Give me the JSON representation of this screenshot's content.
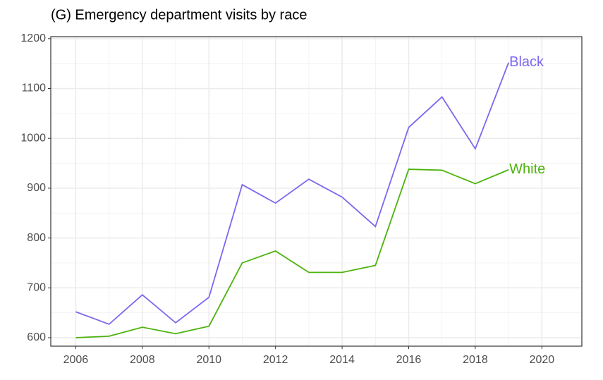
{
  "chart_data": {
    "type": "line",
    "title": "(G) Emergency department visits by race",
    "x": [
      2006,
      2007,
      2008,
      2009,
      2010,
      2011,
      2012,
      2013,
      2014,
      2015,
      2016,
      2017,
      2018,
      2019
    ],
    "series": [
      {
        "name": "Black",
        "color": "#7b68ee",
        "values": [
          652,
          627,
          686,
          630,
          681,
          907,
          870,
          918,
          882,
          823,
          1022,
          1083,
          979,
          1152
        ]
      },
      {
        "name": "White",
        "color": "#4cb30c",
        "values": [
          600,
          603,
          621,
          608,
          623,
          750,
          774,
          731,
          731,
          745,
          938,
          936,
          909,
          937
        ]
      }
    ],
    "xlim": [
      2005.25,
      2021.2
    ],
    "xticks": [
      2006,
      2008,
      2010,
      2012,
      2014,
      2016,
      2018,
      2020
    ],
    "ylim": [
      583,
      1204
    ],
    "yticks": [
      600,
      700,
      800,
      900,
      1000,
      1100,
      1200
    ],
    "grid": true
  }
}
